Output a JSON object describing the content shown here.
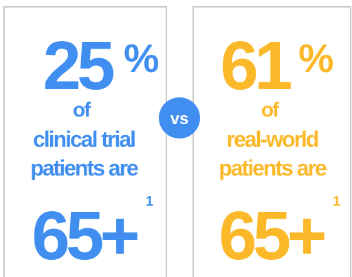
{
  "panels": [
    {
      "number": "25",
      "unit": "%",
      "connector": "of",
      "line1": "clinical trial",
      "line2": "patients are",
      "age": "65+",
      "footnote": "1"
    },
    {
      "number": "61",
      "unit": "%",
      "connector": "of",
      "line1": "real-world",
      "line2": "patients are",
      "age": "65+",
      "footnote": "1"
    }
  ],
  "versus": "vs"
}
